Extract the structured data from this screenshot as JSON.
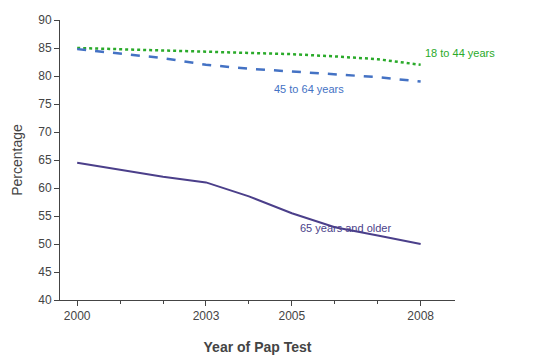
{
  "chart_data": {
    "type": "line",
    "x": [
      2000,
      2001,
      2002,
      2003,
      2004,
      2005,
      2006,
      2007,
      2008
    ],
    "series": [
      {
        "name": "18 to 44 years",
        "color": "#2aaa2a",
        "line_style": "dotted",
        "values": [
          85.0,
          84.8,
          84.5,
          84.3,
          84.1,
          83.9,
          83.5,
          83.0,
          82.0
        ]
      },
      {
        "name": "45 to 64 years",
        "color": "#4472c4",
        "line_style": "dashed",
        "values": [
          84.8,
          84.0,
          83.2,
          82.0,
          81.3,
          80.8,
          80.3,
          79.8,
          79.0
        ]
      },
      {
        "name": "65 years and older",
        "color": "#4b3f8a",
        "line_style": "solid",
        "values": [
          64.5,
          63.3,
          62.0,
          61.0,
          58.5,
          55.5,
          53.0,
          51.5,
          50.0
        ]
      }
    ],
    "xlabel": "Year of Pap Test",
    "ylabel": "Percentage",
    "xlim": [
      1999.6,
      2008.8
    ],
    "xticks": [
      2000,
      2003,
      2005,
      2008
    ],
    "ylim": [
      40,
      90
    ],
    "yticks": [
      40,
      45,
      50,
      55,
      60,
      65,
      70,
      75,
      80,
      85,
      90
    ],
    "grid": false
  }
}
